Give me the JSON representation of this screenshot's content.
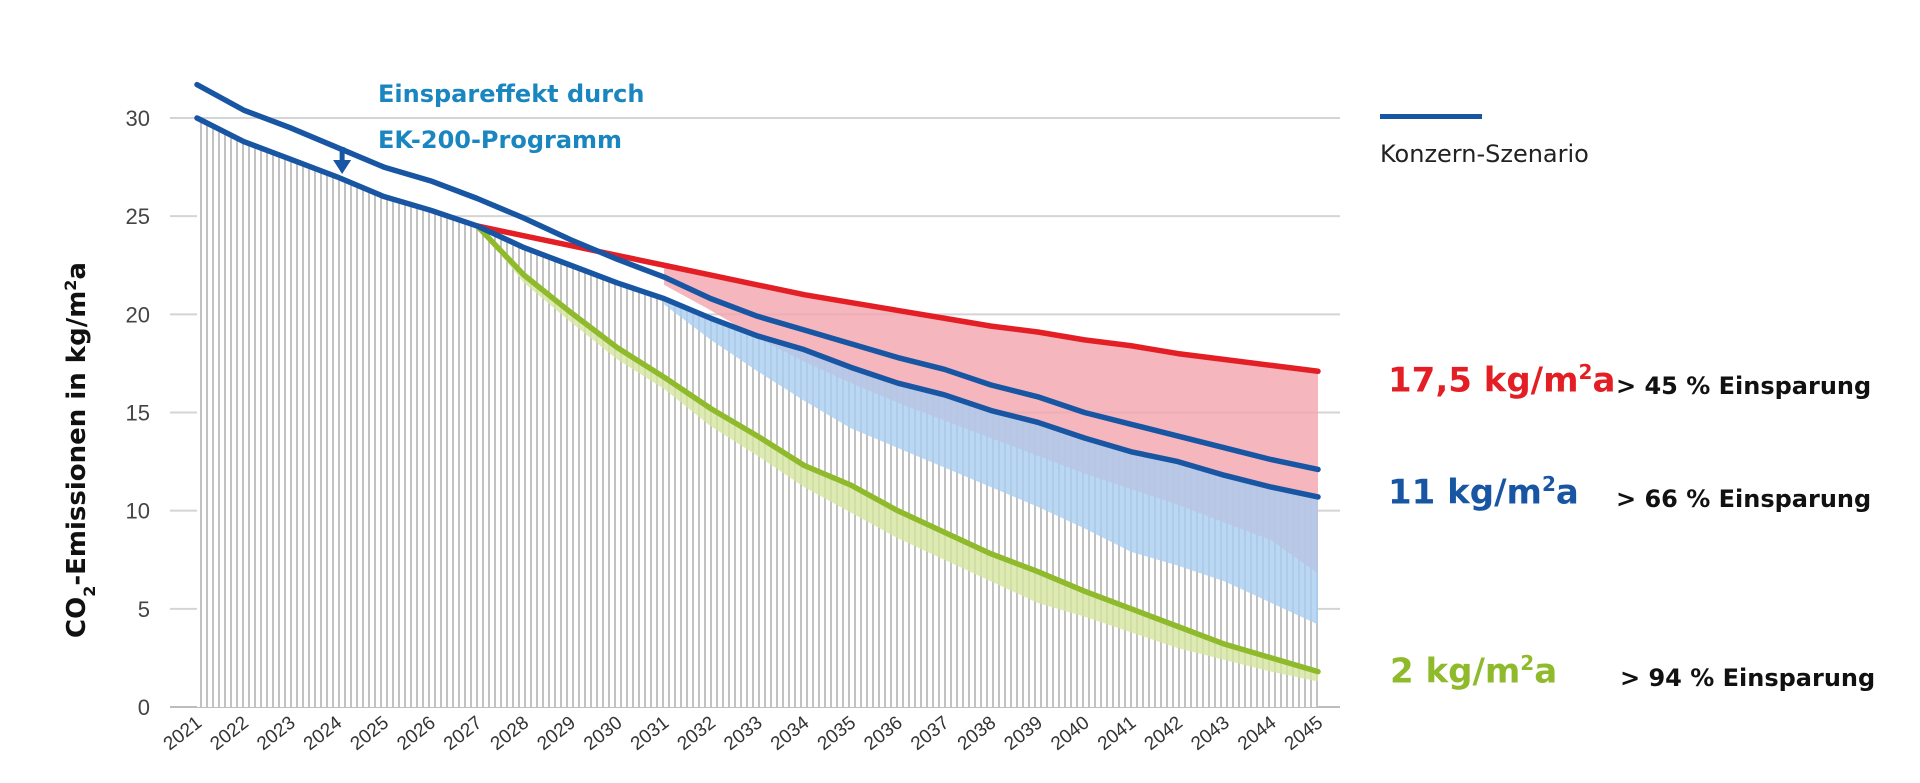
{
  "chart_data": {
    "type": "line",
    "ylabel": "CO2-Emissionen in kg/m2a",
    "ylabel_parts": [
      "CO",
      "2",
      "-Emissionen in kg/m",
      "2",
      "a"
    ],
    "ylim": [
      0,
      30
    ],
    "yticks": [
      0,
      5,
      10,
      15,
      20,
      25,
      30
    ],
    "x": [
      2021,
      2022,
      2023,
      2024,
      2025,
      2026,
      2027,
      2028,
      2029,
      2030,
      2031,
      2032,
      2033,
      2034,
      2035,
      2036,
      2037,
      2038,
      2039,
      2040,
      2041,
      2042,
      2043,
      2044,
      2045
    ],
    "grid": true,
    "series": [
      {
        "name": "Konzern-Szenario",
        "color": "#1856a4",
        "values": [
          31.7,
          30.4,
          29.5,
          28.5,
          27.5,
          26.8,
          25.9,
          24.9,
          23.8,
          22.8,
          21.9,
          20.8,
          19.9,
          19.2,
          18.5,
          17.8,
          17.2,
          16.4,
          15.8,
          15.0,
          14.4,
          13.8,
          13.2,
          12.6,
          12.1
        ]
      },
      {
        "color": "#1856a4",
        "values": [
          30.0,
          28.8,
          27.9,
          27.0,
          26.0,
          25.3,
          24.5,
          23.4,
          22.5,
          21.6,
          20.8,
          19.8,
          18.9,
          18.2,
          17.3,
          16.5,
          15.9,
          15.1,
          14.5,
          13.7,
          13.0,
          12.5,
          11.8,
          11.2,
          10.7
        ]
      },
      {
        "color": "#e31e24",
        "values": [
          null,
          null,
          null,
          null,
          null,
          null,
          24.5,
          24.0,
          23.5,
          23.0,
          22.5,
          22.0,
          21.5,
          21.0,
          20.6,
          20.2,
          19.8,
          19.4,
          19.1,
          18.7,
          18.4,
          18.0,
          17.7,
          17.4,
          17.1
        ]
      },
      {
        "color": "#8fba2b",
        "values": [
          null,
          null,
          null,
          null,
          null,
          null,
          24.5,
          22.0,
          20.1,
          18.3,
          16.8,
          15.2,
          13.8,
          12.3,
          11.3,
          10.0,
          8.9,
          7.8,
          6.9,
          5.9,
          5.0,
          4.1,
          3.2,
          2.5,
          1.8
        ]
      }
    ],
    "bands": [
      {
        "fill": "#f4a4ac",
        "from_x": 2031,
        "upper": [
          22.5,
          22.0,
          21.5,
          21.0,
          20.6,
          20.2,
          19.8,
          19.4,
          19.1,
          18.7,
          18.4,
          18.0,
          17.7,
          17.4,
          17.1
        ],
        "lower": [
          21.5,
          20.2,
          18.8,
          17.6,
          16.5,
          15.5,
          14.6,
          13.7,
          12.8,
          11.9,
          11.1,
          10.3,
          9.4,
          8.5,
          6.8
        ]
      },
      {
        "fill": "#a9cdf0",
        "from_x": 2031,
        "upper": [
          20.8,
          19.8,
          18.9,
          18.2,
          17.3,
          16.5,
          15.9,
          15.1,
          14.5,
          13.7,
          13.0,
          12.5,
          11.8,
          11.2,
          10.7
        ],
        "lower": [
          20.5,
          18.7,
          17.1,
          15.6,
          14.2,
          13.2,
          12.2,
          11.2,
          10.2,
          9.1,
          7.9,
          7.2,
          6.4,
          5.3,
          4.2
        ]
      },
      {
        "fill": "#d4e6a0",
        "from_x": 2027,
        "upper": [
          24.5,
          22.0,
          20.1,
          18.3,
          16.8,
          15.2,
          13.8,
          12.3,
          11.3,
          10.0,
          8.9,
          7.8,
          6.9,
          5.9,
          5.0,
          4.1,
          3.2,
          2.5,
          1.8
        ],
        "lower": [
          24.5,
          21.6,
          19.6,
          17.7,
          16.2,
          14.3,
          12.8,
          11.2,
          9.9,
          8.6,
          7.5,
          6.4,
          5.3,
          4.6,
          3.8,
          3.0,
          2.4,
          1.8,
          1.3
        ]
      }
    ],
    "hatch_area_under_lower_blue": true,
    "annotation": [
      "Einspareffekt durch",
      "EK-200-Programm"
    ]
  },
  "legend": {
    "label": "Konzern-Szenario",
    "color": "#1856a4"
  },
  "targets": [
    {
      "value": "17,5 kg/m",
      "sup": "2",
      "unit": "a",
      "color": "#e31e24",
      "saving": "> 45 % Einsparung"
    },
    {
      "value": "11 kg/m",
      "sup": "2",
      "unit": "a",
      "color": "#1856a4",
      "saving": "> 66 % Einsparung"
    },
    {
      "value": "2 kg/m",
      "sup": "2",
      "unit": "a",
      "color": "#8fba2b",
      "saving": "> 94 % Einsparung"
    }
  ]
}
